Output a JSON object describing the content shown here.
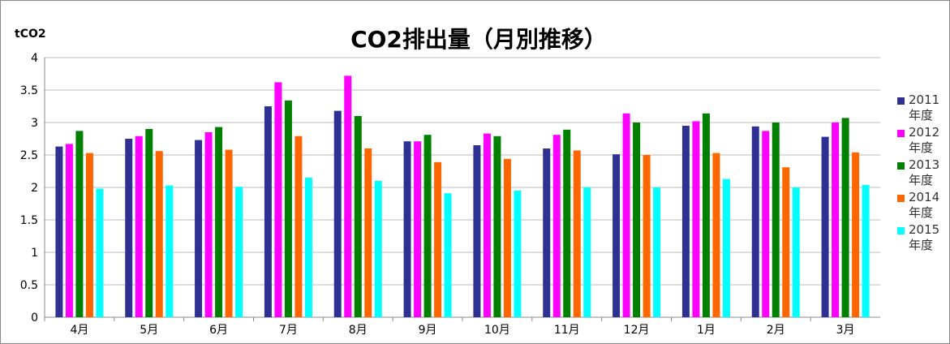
{
  "chart_data": {
    "type": "bar",
    "title": "CO2排出量（月別推移）",
    "y_label": "tCO2",
    "categories": [
      "4月",
      "5月",
      "6月",
      "7月",
      "8月",
      "9月",
      "10月",
      "11月",
      "12月",
      "1月",
      "2月",
      "3月"
    ],
    "series": [
      {
        "name": "2011年度",
        "color": "#2e3192",
        "values": [
          2.63,
          2.75,
          2.73,
          3.25,
          3.18,
          2.71,
          2.65,
          2.6,
          2.51,
          2.95,
          2.94,
          2.78
        ]
      },
      {
        "name": "2012年度",
        "color": "#ff00ff",
        "values": [
          2.67,
          2.79,
          2.85,
          3.62,
          3.72,
          2.71,
          2.83,
          2.81,
          3.14,
          3.02,
          2.87,
          3.0
        ]
      },
      {
        "name": "2013年度",
        "color": "#008000",
        "values": [
          2.87,
          2.9,
          2.93,
          3.34,
          3.1,
          2.81,
          2.79,
          2.89,
          3.0,
          3.14,
          3.0,
          3.07
        ]
      },
      {
        "name": "2014年度",
        "color": "#ff6600",
        "values": [
          2.53,
          2.56,
          2.58,
          2.79,
          2.6,
          2.39,
          2.44,
          2.57,
          2.5,
          2.53,
          2.31,
          2.54
        ]
      },
      {
        "name": "2015年度",
        "color": "#00ffff",
        "values": [
          1.98,
          2.03,
          2.01,
          2.15,
          2.1,
          1.91,
          1.95,
          2.0,
          2.0,
          2.13,
          2.0,
          2.04
        ]
      }
    ],
    "ylim": [
      0,
      4
    ],
    "yticks": [
      0,
      0.5,
      1,
      1.5,
      2,
      2.5,
      3,
      3.5,
      4
    ],
    "grid": true
  }
}
